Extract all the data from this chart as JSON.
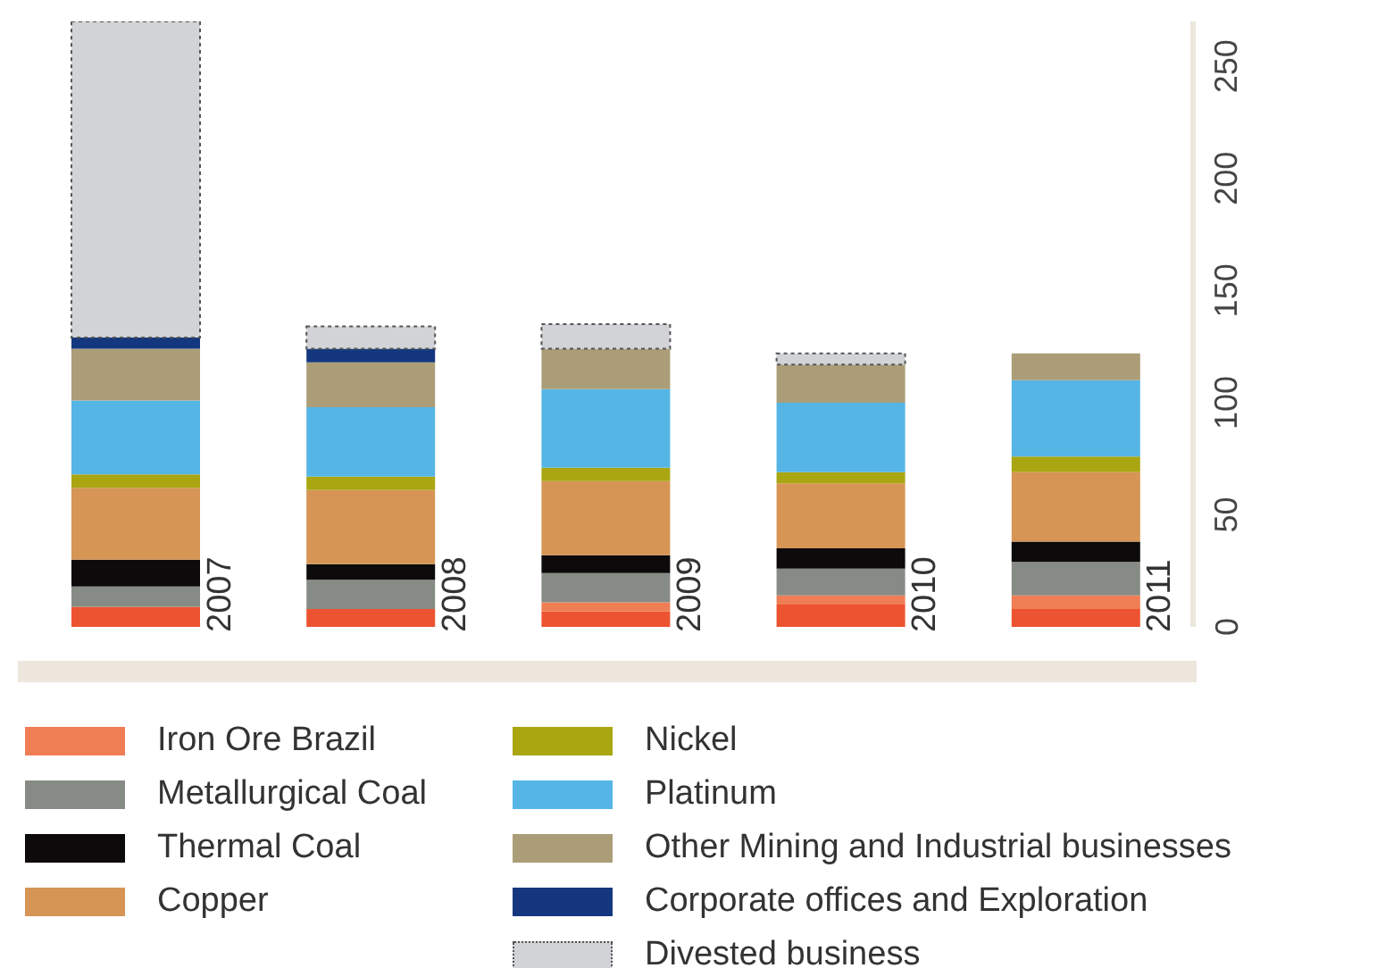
{
  "chart_data": {
    "type": "bar",
    "stacked": true,
    "categories": [
      "2007",
      "2008",
      "2009",
      "2010",
      "2011"
    ],
    "ylim": [
      0,
      270
    ],
    "yticks": [
      0,
      50,
      100,
      150,
      200,
      250
    ],
    "legend": "bottom",
    "series": [
      {
        "color": "#ec5330",
        "values": [
          9,
          8,
          7,
          10,
          8
        ]
      },
      {
        "name": "Iron Ore Brazil",
        "color": "#f07e55",
        "values": [
          null,
          null,
          4,
          4,
          6
        ]
      },
      {
        "name": "Metallurgical Coal",
        "color": "#878b85",
        "values": [
          9,
          13,
          13,
          12,
          15
        ]
      },
      {
        "name": "Thermal Coal",
        "color": "#0d0a0b",
        "values": [
          12,
          7,
          8,
          9,
          9
        ]
      },
      {
        "name": "Copper",
        "color": "#d69555",
        "values": [
          32,
          33,
          33,
          29,
          31
        ]
      },
      {
        "name": "Nickel",
        "color": "#a9a612",
        "values": [
          6,
          6,
          6,
          5,
          7
        ]
      },
      {
        "name": "Platinum",
        "color": "#55b6e6",
        "values": [
          33,
          31,
          35,
          31,
          34
        ]
      },
      {
        "name": "Other Mining and Industrial businesses",
        "color": "#ab9d77",
        "values": [
          23,
          20,
          18,
          17,
          12
        ]
      },
      {
        "name": "Corporate offices and Exploration",
        "color": "#14377f",
        "values": [
          5,
          6,
          null,
          null,
          null
        ]
      },
      {
        "name": "Divested business",
        "color": "#d1d3d6",
        "line_style": "dotted",
        "values": [
          141,
          10,
          11,
          5,
          null
        ]
      }
    ]
  }
}
